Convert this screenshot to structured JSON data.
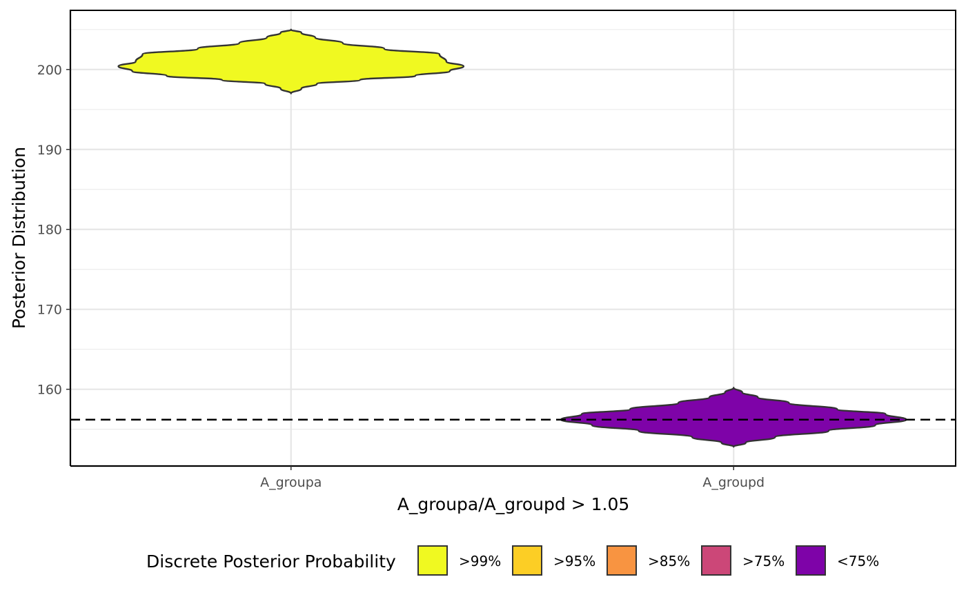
{
  "chart_data": {
    "type": "violin",
    "title": "",
    "xlabel": "A_groupa/A_groupd > 1.05",
    "ylabel": "Posterior Distribution",
    "categories": [
      "A_groupa",
      "A_groupd"
    ],
    "yticks": [
      160,
      170,
      180,
      190,
      200
    ],
    "ylim": [
      150.4,
      207.4
    ],
    "grid": true,
    "reference_line": {
      "y": 156.2,
      "style": "dashed",
      "color": "#000000"
    },
    "series": [
      {
        "category": "A_groupa",
        "fill": "#F0F921",
        "ymin": 197.0,
        "ymax": 205.0,
        "profile": [
          [
            197.0,
            0.0
          ],
          [
            197.6,
            0.06
          ],
          [
            198.2,
            0.15
          ],
          [
            198.7,
            0.4
          ],
          [
            199.2,
            0.72
          ],
          [
            199.8,
            0.92
          ],
          [
            200.4,
            1.0
          ],
          [
            201.0,
            0.9
          ],
          [
            201.9,
            0.86
          ],
          [
            202.6,
            0.54
          ],
          [
            203.3,
            0.3
          ],
          [
            204.0,
            0.14
          ],
          [
            204.6,
            0.06
          ],
          [
            205.0,
            0.0
          ]
        ]
      },
      {
        "category": "A_groupd",
        "fill": "#7E03A8",
        "ymin": 152.8,
        "ymax": 160.2,
        "profile": [
          [
            152.8,
            0.0
          ],
          [
            153.3,
            0.07
          ],
          [
            154.0,
            0.24
          ],
          [
            154.8,
            0.55
          ],
          [
            155.5,
            0.82
          ],
          [
            156.2,
            1.0
          ],
          [
            156.9,
            0.88
          ],
          [
            157.5,
            0.6
          ],
          [
            158.3,
            0.32
          ],
          [
            159.0,
            0.14
          ],
          [
            159.6,
            0.05
          ],
          [
            160.2,
            0.0
          ]
        ]
      }
    ],
    "legend": {
      "title": "Discrete Posterior Probability",
      "placement": "bottom",
      "items": [
        {
          "label": ">99%",
          "color": "#F0F921"
        },
        {
          "label": ">95%",
          "color": "#FCCE25"
        },
        {
          "label": ">85%",
          "color": "#F89441"
        },
        {
          "label": ">75%",
          "color": "#CC4778"
        },
        {
          "label": "<75%",
          "color": "#7E03A8"
        }
      ]
    }
  }
}
